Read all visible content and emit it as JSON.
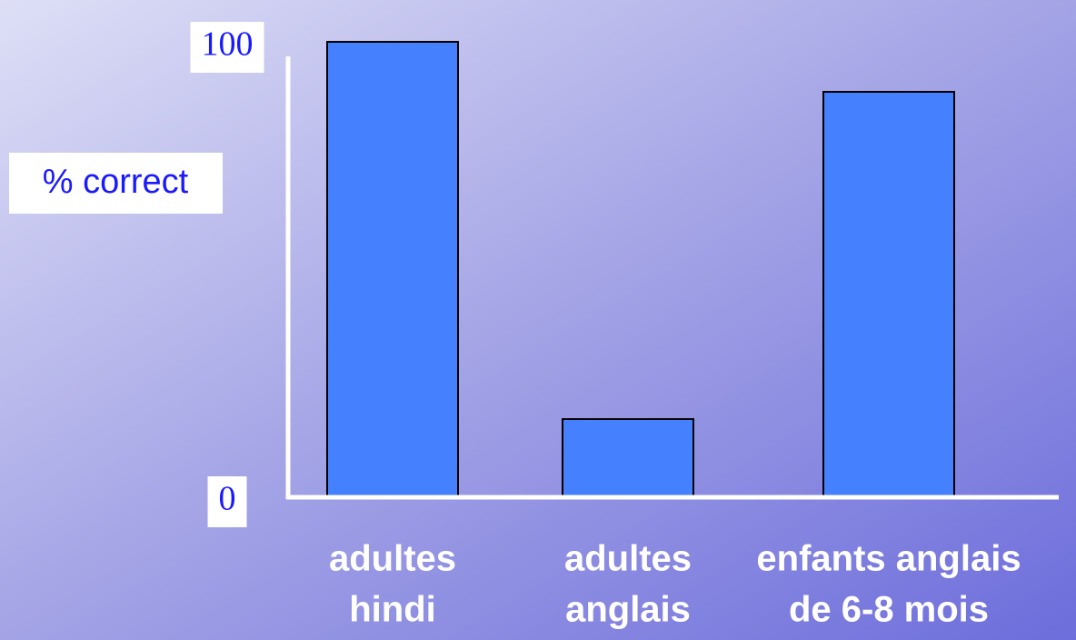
{
  "chart_data": {
    "type": "bar",
    "ylabel": "% correct",
    "categories": [
      [
        "adultes",
        "hindi"
      ],
      [
        "adultes",
        "anglais"
      ],
      [
        "enfants anglais",
        "de 6-8 mois"
      ]
    ],
    "values": [
      100,
      17,
      89
    ],
    "color": "#4580ff",
    "ylim": [
      0,
      100
    ],
    "yticks": [
      0,
      100
    ],
    "grid": false
  }
}
